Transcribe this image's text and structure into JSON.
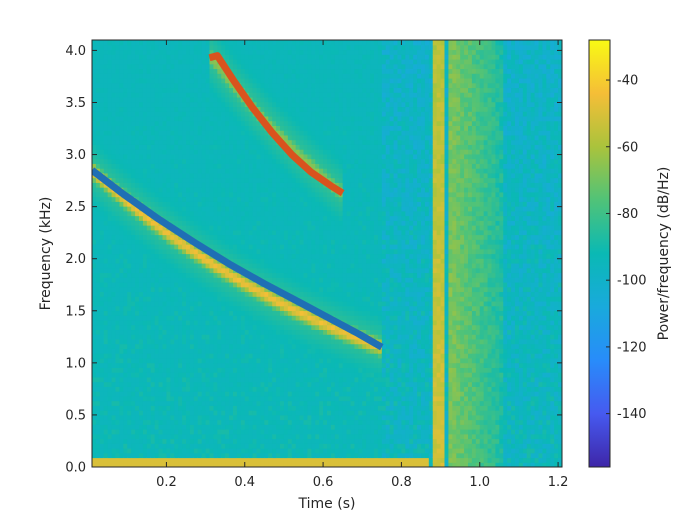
{
  "chart_data": {
    "type": "heatmap",
    "subtype": "spectrogram",
    "xlabel": "Time (s)",
    "ylabel": "Frequency (kHz)",
    "colorbar_label": "Power/frequency (dB/Hz)",
    "colormap": "parula",
    "xlim": [
      0.01,
      1.21
    ],
    "ylim": [
      0,
      4.1
    ],
    "clim": [
      -156,
      -28
    ],
    "x_ticks": [
      0.2,
      0.4,
      0.6,
      0.8,
      1.0,
      1.2
    ],
    "x_tick_labels": [
      "0.2",
      "0.4",
      "0.6",
      "0.8",
      "1.0",
      "1.2"
    ],
    "y_ticks": [
      0,
      0.5,
      1.0,
      1.5,
      2.0,
      2.5,
      3.0,
      3.5,
      4.0
    ],
    "y_tick_labels": [
      "0.0",
      "0.5",
      "1.0",
      "1.5",
      "2.0",
      "2.5",
      "3.0",
      "3.5",
      "4.0"
    ],
    "colorbar_ticks": [
      -40,
      -60,
      -80,
      -100,
      -120,
      -140
    ],
    "colorbar_tick_labels": [
      "-40",
      "-60",
      "-80",
      "-100",
      "-120",
      "-140"
    ],
    "background_level_db": -95,
    "features": [
      {
        "kind": "chirp",
        "t_start": 0.01,
        "t_end": 0.75,
        "f_start": 2.85,
        "f_end": 1.15,
        "level_db": -45
      },
      {
        "kind": "chirp",
        "t_start": 0.31,
        "t_end": 0.65,
        "f_start": 3.95,
        "f_end": 2.63,
        "level_db": -65
      },
      {
        "kind": "click",
        "t_start": 0.875,
        "t_end": 0.915,
        "level_db": -52
      },
      {
        "kind": "low_tone",
        "f": 0.02,
        "t_start": 0.01,
        "t_end": 0.87,
        "level_db": -50
      }
    ],
    "series": [
      {
        "color": "#1f6fb5",
        "x": [
          0.01,
          0.09,
          0.18,
          0.27,
          0.36,
          0.45,
          0.54,
          0.63,
          0.69,
          0.75
        ],
        "y": [
          2.85,
          2.62,
          2.38,
          2.16,
          1.95,
          1.76,
          1.58,
          1.4,
          1.28,
          1.15
        ]
      },
      {
        "color": "#d9531e",
        "x": [
          0.31,
          0.33,
          0.37,
          0.42,
          0.47,
          0.52,
          0.57,
          0.62,
          0.65
        ],
        "y": [
          3.93,
          3.95,
          3.72,
          3.45,
          3.21,
          3.0,
          2.83,
          2.7,
          2.63
        ]
      }
    ]
  }
}
